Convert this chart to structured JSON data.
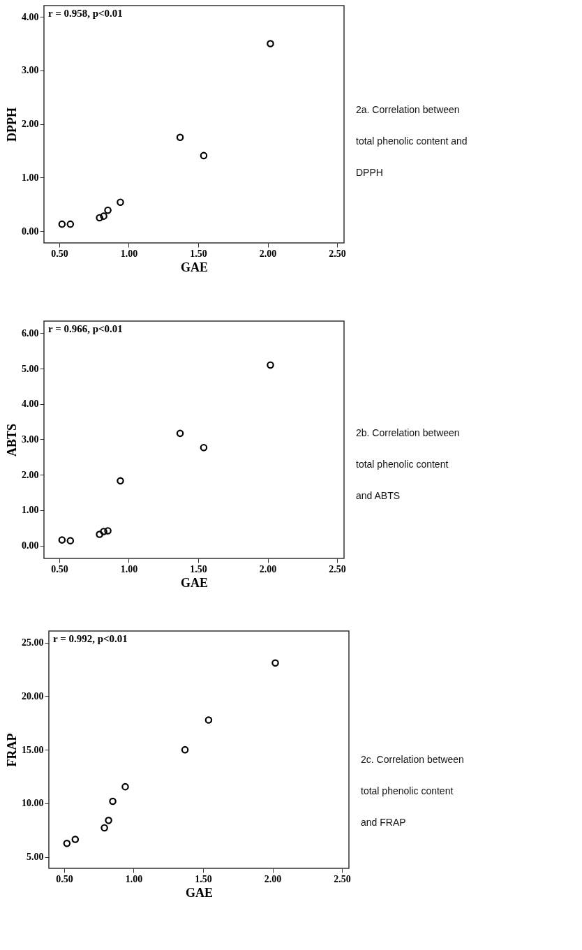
{
  "chart_data": [
    {
      "type": "scatter",
      "xlabel": "GAE",
      "ylabel": "DPPH",
      "marker": "circle",
      "color": "#000000",
      "x": [
        0.52,
        0.58,
        0.79,
        0.82,
        0.85,
        0.94,
        1.37,
        1.54,
        2.02
      ],
      "values": [
        0.13,
        0.13,
        0.25,
        0.28,
        0.39,
        0.54,
        1.75,
        1.41,
        3.5
      ],
      "xlim": [
        0.39,
        2.55
      ],
      "xticks": [
        {
          "value": 0.5,
          "label": "0.50"
        },
        {
          "value": 1,
          "label": "1.00"
        },
        {
          "value": 1.5,
          "label": "1.50"
        },
        {
          "value": 2,
          "label": "2.00"
        },
        {
          "value": 2.5,
          "label": "2.50"
        }
      ],
      "ylim": [
        -0.22,
        4.21
      ],
      "yticks": [
        {
          "value": 0,
          "label": "0.00"
        },
        {
          "value": 1,
          "label": "1.00"
        },
        {
          "value": 2,
          "label": "2.00"
        },
        {
          "value": 3,
          "label": "3.00"
        },
        {
          "value": 4,
          "label": "4.00"
        }
      ],
      "annotations": [
        "r = 0.958, p<0.01",
        "2a. Correlation between total phenolic content and DPPH"
      ]
    },
    {
      "type": "scatter",
      "xlabel": "GAE",
      "ylabel": "ABTS",
      "marker": "circle",
      "color": "#000000",
      "x": [
        0.52,
        0.58,
        0.79,
        0.82,
        0.85,
        0.94,
        1.37,
        1.54,
        2.02
      ],
      "values": [
        0.16,
        0.14,
        0.32,
        0.4,
        0.42,
        1.83,
        3.17,
        2.77,
        5.1
      ],
      "xlim": [
        0.39,
        2.55
      ],
      "xticks": [
        {
          "value": 0.5,
          "label": "0.50"
        },
        {
          "value": 1,
          "label": "1.00"
        },
        {
          "value": 1.5,
          "label": "1.50"
        },
        {
          "value": 2,
          "label": "2.00"
        },
        {
          "value": 2.5,
          "label": "2.50"
        }
      ],
      "ylim": [
        -0.36,
        6.34
      ],
      "yticks": [
        {
          "value": 0,
          "label": "0.00"
        },
        {
          "value": 1,
          "label": "1.00"
        },
        {
          "value": 2,
          "label": "2.00"
        },
        {
          "value": 3,
          "label": "3.00"
        },
        {
          "value": 4,
          "label": "4.00"
        },
        {
          "value": 5,
          "label": "5.00"
        },
        {
          "value": 6,
          "label": "6.00"
        }
      ],
      "annotations": [
        "r = 0.966, p<0.01",
        "2b. Correlation between total phenolic content and ABTS"
      ]
    },
    {
      "type": "scatter",
      "xlabel": "GAE",
      "ylabel": "FRAP",
      "marker": "circle",
      "color": "#000000",
      "x": [
        0.52,
        0.58,
        0.79,
        0.82,
        0.85,
        0.94,
        1.37,
        1.54,
        2.02
      ],
      "values": [
        6.27,
        6.64,
        7.72,
        8.41,
        10.19,
        11.55,
        15.0,
        17.78,
        23.1
      ],
      "xlim": [
        0.39,
        2.55
      ],
      "xticks": [
        {
          "value": 0.5,
          "label": "0.50"
        },
        {
          "value": 1,
          "label": "1.00"
        },
        {
          "value": 1.5,
          "label": "1.50"
        },
        {
          "value": 2,
          "label": "2.00"
        },
        {
          "value": 2.5,
          "label": "2.50"
        }
      ],
      "ylim": [
        3.94,
        26.08
      ],
      "yticks": [
        {
          "value": 5,
          "label": "5.00"
        },
        {
          "value": 10,
          "label": "10.00"
        },
        {
          "value": 15,
          "label": "15.00"
        },
        {
          "value": 20,
          "label": "20.00"
        },
        {
          "value": 25,
          "label": "25.00"
        }
      ],
      "annotations": [
        "r = 0.992, p<0.01",
        "2c. Correlation between total phenolic content and FRAP"
      ]
    }
  ]
}
